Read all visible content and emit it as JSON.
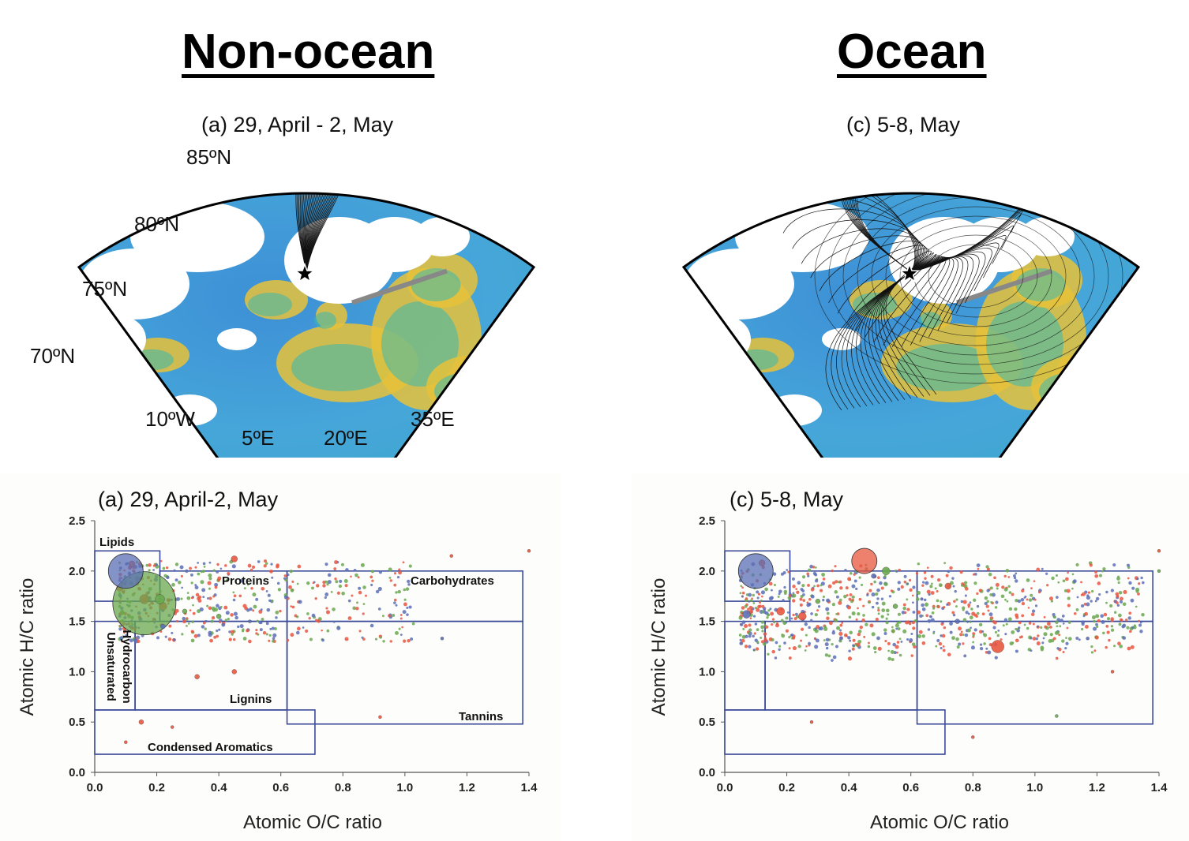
{
  "headings": {
    "left": "Non-ocean",
    "right": "Ocean"
  },
  "maps": [
    {
      "title": "(a) 29, April - 2, May",
      "lat_labels": [
        "85ºN",
        "80ºN",
        "75ºN",
        "70ºN"
      ],
      "lon_labels": [
        "10ºW",
        "5ºE",
        "20ºE",
        "35ºE"
      ],
      "trajectory_style": "north-south band",
      "marker": "star"
    },
    {
      "title": "(c) 5-8, May",
      "lat_labels": [],
      "lon_labels": [],
      "trajectory_style": "widely spread",
      "marker": "star"
    }
  ],
  "scatter_axes": {
    "xlabel": "Atomic O/C ratio",
    "ylabel": "Atomic H/C ratio",
    "xticks": [
      "0.0",
      "0.2",
      "0.4",
      "0.6",
      "0.8",
      "1.0",
      "1.2",
      "1.4"
    ],
    "yticks": [
      "0.0",
      "0.5",
      "1.0",
      "1.5",
      "2.0",
      "2.5"
    ]
  },
  "region_labels": {
    "lipids": "Lipids",
    "proteins": "Proteins",
    "carbohydrates": "Carbohydrates",
    "unsaturated_line1": "Unsaturated",
    "unsaturated_line2": "Hydrocarbon",
    "lignins": "Lignins",
    "tannins": "Tannins",
    "condensed": "Condensed Aromatics"
  },
  "colors": {
    "series_red": "#e8563f",
    "series_green": "#6aa84f",
    "series_blue": "#5b6fb5",
    "box_outline": "#3b4a99",
    "map_ocean_low": "#3d8fd6",
    "map_ocean_mid": "#38b8b0",
    "map_ocean_high": "#e8c23a",
    "land": "#ffffff",
    "coast": "#888888"
  },
  "chart_data": [
    {
      "type": "scatter",
      "title": "(a) 29, April-2, May",
      "xlabel": "Atomic O/C ratio",
      "ylabel": "Atomic H/C ratio",
      "xlim": [
        0,
        1.4
      ],
      "ylim": [
        0,
        2.5
      ],
      "grid": false,
      "regions": [
        {
          "name": "Lipids",
          "x": [
            0.0,
            0.21
          ],
          "y": [
            1.7,
            2.2
          ]
        },
        {
          "name": "Proteins",
          "x": [
            0.21,
            0.62
          ],
          "y": [
            1.5,
            2.0
          ]
        },
        {
          "name": "Carbohydrates",
          "x": [
            0.62,
            1.38
          ],
          "y": [
            1.5,
            2.0
          ]
        },
        {
          "name": "Unsaturated Hydrocarbon",
          "x": [
            0.0,
            0.13
          ],
          "y": [
            0.62,
            1.5
          ]
        },
        {
          "name": "Lignins",
          "x": [
            0.13,
            0.62
          ],
          "y": [
            0.62,
            1.5
          ]
        },
        {
          "name": "Tannins",
          "x": [
            0.62,
            1.38
          ],
          "y": [
            0.48,
            1.5
          ]
        },
        {
          "name": "Condensed Aromatics",
          "x": [
            0.0,
            0.71
          ],
          "y": [
            0.18,
            0.62
          ]
        }
      ],
      "series": [
        {
          "color": "red",
          "points": [
            [
              0.12,
              2.07,
              4
            ],
            [
              0.45,
              2.12,
              4
            ],
            [
              0.08,
              1.83,
              4
            ],
            [
              0.16,
              1.72,
              6
            ],
            [
              0.22,
              1.65,
              5
            ],
            [
              0.33,
              0.95,
              3
            ],
            [
              0.45,
              1.0,
              3
            ],
            [
              0.15,
              0.5,
              3
            ],
            [
              1.15,
              2.15,
              2
            ],
            [
              1.4,
              2.2,
              2
            ],
            [
              0.92,
              0.55,
              2
            ],
            [
              0.1,
              0.3,
              2
            ],
            [
              0.25,
              0.45,
              2
            ]
          ]
        },
        {
          "color": "green",
          "points": [
            [
              0.16,
              1.68,
              40
            ],
            [
              0.21,
              1.72,
              6
            ],
            [
              0.29,
              1.6,
              3
            ],
            [
              0.4,
              1.55,
              3
            ]
          ]
        },
        {
          "color": "blue",
          "points": [
            [
              0.1,
              2.0,
              22
            ],
            [
              0.22,
              1.45,
              3
            ],
            [
              0.5,
              1.5,
              2
            ],
            [
              1.12,
              1.33,
              2
            ]
          ]
        }
      ]
    },
    {
      "type": "scatter",
      "title": "(c) 5-8, May",
      "xlabel": "Atomic O/C ratio",
      "ylabel": "Atomic H/C ratio",
      "xlim": [
        0,
        1.4
      ],
      "ylim": [
        0,
        2.5
      ],
      "grid": false,
      "regions": [
        {
          "name": "Lipids",
          "x": [
            0.0,
            0.21
          ],
          "y": [
            1.7,
            2.2
          ]
        },
        {
          "name": "Proteins",
          "x": [
            0.21,
            0.62
          ],
          "y": [
            1.5,
            2.0
          ]
        },
        {
          "name": "Carbohydrates",
          "x": [
            0.62,
            1.38
          ],
          "y": [
            1.5,
            2.0
          ]
        },
        {
          "name": "Unsaturated Hydrocarbon",
          "x": [
            0.0,
            0.13
          ],
          "y": [
            0.62,
            1.5
          ]
        },
        {
          "name": "Lignins",
          "x": [
            0.13,
            0.62
          ],
          "y": [
            0.62,
            1.5
          ]
        },
        {
          "name": "Tannins",
          "x": [
            0.62,
            1.38
          ],
          "y": [
            0.48,
            1.5
          ]
        },
        {
          "name": "Condensed Aromatics",
          "x": [
            0.0,
            0.71
          ],
          "y": [
            0.18,
            0.62
          ]
        }
      ],
      "series": [
        {
          "color": "red",
          "points": [
            [
              0.45,
              2.1,
              16
            ],
            [
              0.88,
              1.25,
              8
            ],
            [
              0.12,
              2.08,
              4
            ],
            [
              0.18,
              1.6,
              5
            ],
            [
              0.25,
              1.55,
              5
            ],
            [
              0.72,
              1.85,
              4
            ],
            [
              1.25,
              1.0,
              2
            ],
            [
              0.28,
              0.5,
              2
            ],
            [
              0.8,
              0.35,
              2
            ],
            [
              1.4,
              2.2,
              2
            ]
          ]
        },
        {
          "color": "green",
          "points": [
            [
              0.52,
              2.0,
              5
            ],
            [
              0.3,
              1.7,
              3
            ],
            [
              0.55,
              1.65,
              3
            ],
            [
              1.07,
              0.56,
              2
            ],
            [
              1.4,
              2.0,
              2
            ]
          ]
        },
        {
          "color": "blue",
          "points": [
            [
              0.1,
              2.0,
              22
            ],
            [
              0.07,
              1.57,
              5
            ],
            [
              0.48,
              1.95,
              3
            ],
            [
              0.75,
              1.5,
              3
            ],
            [
              1.17,
              1.33,
              2
            ]
          ]
        }
      ]
    }
  ]
}
